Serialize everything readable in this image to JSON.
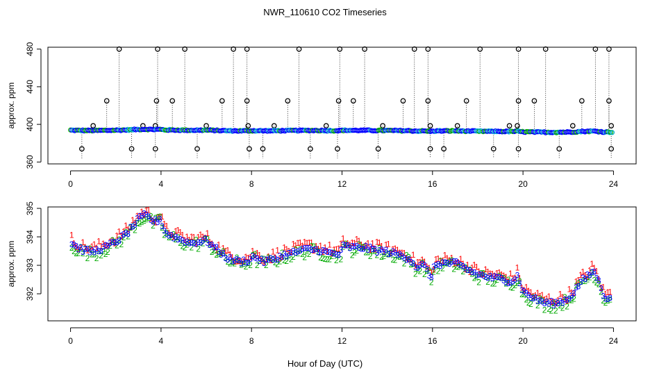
{
  "chart_data": {
    "type": "scatter",
    "title": "NWR_110610  CO2 Timeseries",
    "xlabel": "Hour of Day (UTC)",
    "xlim": [
      -1,
      25
    ],
    "x_ticks": [
      0,
      4,
      8,
      12,
      16,
      20,
      24
    ],
    "x_tick_labels": [
      "0",
      "4",
      "8",
      "12",
      "16",
      "20",
      "24"
    ],
    "colors": {
      "series1": "#ff0000",
      "series2": "#00aa00",
      "series3": "#0000ff",
      "mean_line": "#808080",
      "spike": "#000000"
    },
    "panels": [
      {
        "name": "full-range",
        "ylabel": "approx. ppm",
        "ylim": [
          358,
          482
        ],
        "y_ticks": [
          360,
          400,
          440,
          480
        ],
        "y_tick_labels": [
          "360",
          "400",
          "440",
          "480"
        ],
        "high_spike_hours": [
          2.15,
          3.85,
          5.05,
          7.2,
          7.8,
          10.1,
          11.9,
          13.0,
          15.2,
          15.8,
          18.1,
          19.8,
          21.0,
          23.2,
          23.8
        ],
        "mid_spike_hours": [
          1.6,
          3.8,
          4.5,
          6.7,
          7.8,
          9.6,
          11.85,
          12.5,
          14.7,
          15.8,
          17.5,
          19.8,
          20.5,
          22.6,
          23.8
        ],
        "low_spike_hours": [
          1.0,
          3.2,
          3.75,
          6.0,
          7.85,
          9.0,
          11.3,
          13.8,
          15.9,
          17.1,
          19.4,
          19.75,
          22.2,
          23.9
        ],
        "dip_spike_hours": [
          0.5,
          2.7,
          3.75,
          5.6,
          7.9,
          8.5,
          10.6,
          11.8,
          13.6,
          15.9,
          16.5,
          18.7,
          19.8,
          21.6,
          23.9
        ]
      },
      {
        "name": "zoomed",
        "ylabel": "approx. ppm",
        "ylim": [
          391.05,
          395.05
        ],
        "y_ticks": [
          392,
          393,
          394,
          395
        ],
        "y_tick_labels": [
          "392",
          "393",
          "394",
          "395"
        ],
        "series_markers": [
          "1",
          "2",
          "3"
        ]
      }
    ],
    "series_knots": {
      "x": [
        0,
        0.3,
        0.6,
        1.0,
        1.5,
        2.0,
        2.5,
        3.0,
        3.3,
        3.7,
        3.95,
        4.2,
        4.8,
        5.3,
        6.0,
        6.5,
        7.0,
        7.5,
        7.9,
        8.1,
        8.5,
        9.0,
        9.5,
        10.0,
        10.5,
        11.0,
        11.5,
        11.9,
        12.05,
        12.5,
        13.0,
        13.5,
        14.0,
        14.5,
        15.0,
        15.3,
        15.6,
        15.95,
        16.1,
        16.5,
        17.0,
        17.5,
        18.0,
        18.5,
        19.0,
        19.5,
        19.75,
        20.0,
        20.5,
        21.0,
        21.5,
        22.0,
        22.3,
        22.6,
        22.9,
        23.1,
        23.3,
        23.6,
        23.9
      ],
      "y": [
        393.8,
        393.6,
        393.5,
        393.45,
        393.6,
        393.8,
        394.1,
        394.6,
        394.75,
        394.5,
        394.6,
        394.1,
        393.9,
        393.75,
        393.85,
        393.5,
        393.2,
        393.1,
        393.15,
        393.3,
        393.1,
        393.2,
        393.35,
        393.45,
        393.55,
        393.5,
        393.4,
        393.35,
        393.65,
        393.6,
        393.6,
        393.5,
        393.45,
        393.35,
        393.2,
        392.9,
        393.0,
        392.55,
        393.0,
        393.05,
        393.05,
        392.85,
        392.65,
        392.55,
        392.5,
        392.4,
        392.6,
        392.05,
        391.8,
        391.65,
        391.65,
        391.8,
        392.1,
        392.45,
        392.6,
        392.8,
        392.5,
        391.85,
        391.85
      ],
      "offsets": {
        "series1": 0.13,
        "series2": -0.07,
        "series3": 0.0
      }
    }
  }
}
